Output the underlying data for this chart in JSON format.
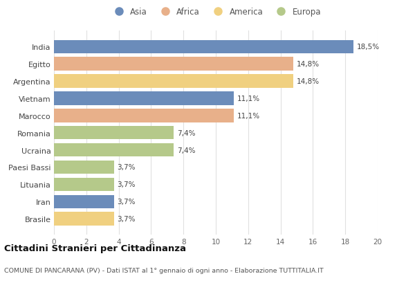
{
  "countries": [
    "India",
    "Egitto",
    "Argentina",
    "Vietnam",
    "Marocco",
    "Romania",
    "Ucraina",
    "Paesi Bassi",
    "Lituania",
    "Iran",
    "Brasile"
  ],
  "values": [
    18.5,
    14.8,
    14.8,
    11.1,
    11.1,
    7.4,
    7.4,
    3.7,
    3.7,
    3.7,
    3.7
  ],
  "labels": [
    "18,5%",
    "14,8%",
    "14,8%",
    "11,1%",
    "11,1%",
    "7,4%",
    "7,4%",
    "3,7%",
    "3,7%",
    "3,7%",
    "3,7%"
  ],
  "colors": [
    "#6b8cba",
    "#e8b08a",
    "#f0d080",
    "#6b8cba",
    "#e8b08a",
    "#b5c98a",
    "#b5c98a",
    "#b5c98a",
    "#b5c98a",
    "#6b8cba",
    "#f0d080"
  ],
  "legend_labels": [
    "Asia",
    "Africa",
    "America",
    "Europa"
  ],
  "legend_colors": [
    "#6b8cba",
    "#e8b08a",
    "#f0d080",
    "#b5c98a"
  ],
  "title": "Cittadini Stranieri per Cittadinanza",
  "subtitle": "COMUNE DI PANCARANA (PV) - Dati ISTAT al 1° gennaio di ogni anno - Elaborazione TUTTITALIA.IT",
  "xlim": [
    0,
    20
  ],
  "xticks": [
    0,
    2,
    4,
    6,
    8,
    10,
    12,
    14,
    16,
    18,
    20
  ],
  "background_color": "#ffffff",
  "grid_color": "#e0e0e0"
}
